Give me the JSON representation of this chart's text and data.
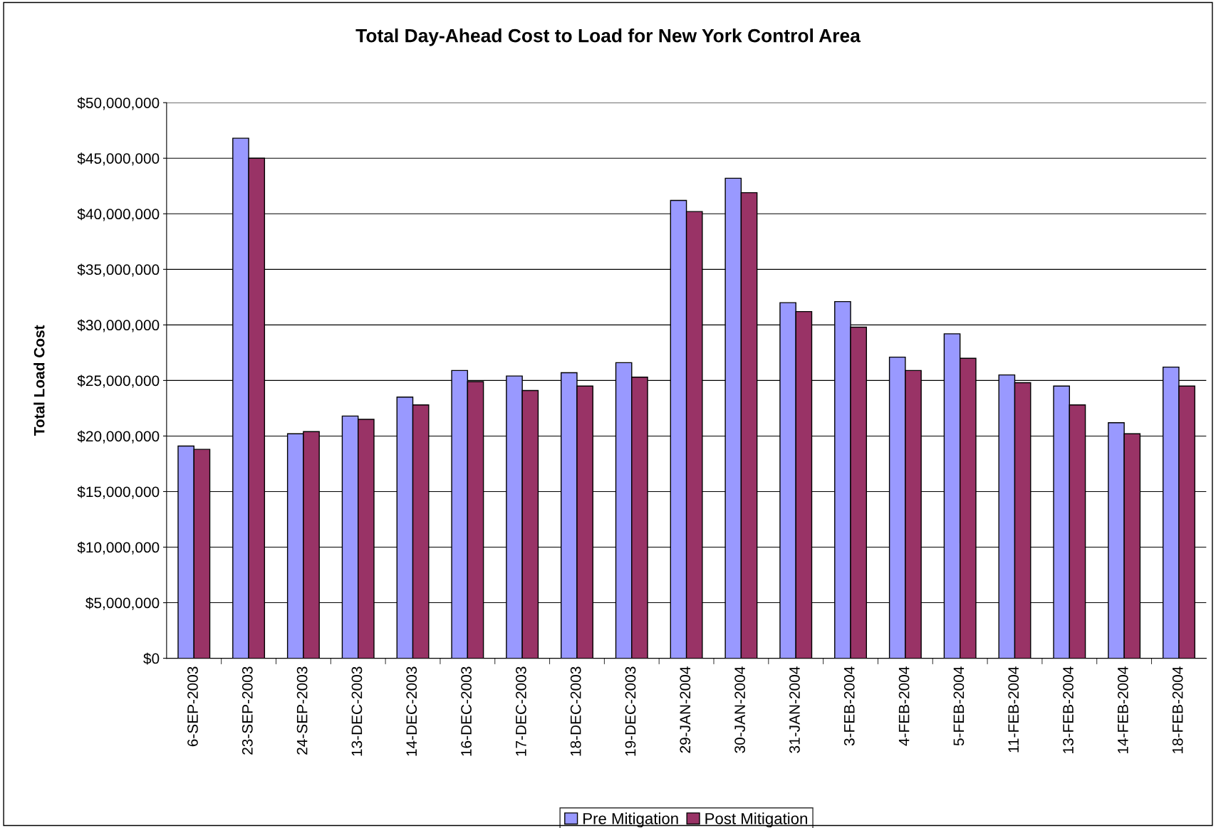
{
  "chart_data": {
    "type": "bar",
    "title": "Total Day-Ahead Cost to Load for New York Control Area",
    "ylabel": "Total Load Cost",
    "categories": [
      "6-SEP-2003",
      "23-SEP-2003",
      "24-SEP-2003",
      "13-DEC-2003",
      "14-DEC-2003",
      "16-DEC-2003",
      "17-DEC-2003",
      "18-DEC-2003",
      "19-DEC-2003",
      "29-JAN-2004",
      "30-JAN-2004",
      "31-JAN-2004",
      "3-FEB-2004",
      "4-FEB-2004",
      "5-FEB-2004",
      "11-FEB-2004",
      "13-FEB-2004",
      "14-FEB-2004",
      "18-FEB-2004"
    ],
    "series": [
      {
        "name": "Pre Mitigation",
        "color": "#9999ff",
        "values": [
          19100000,
          46800000,
          20200000,
          21800000,
          23500000,
          25900000,
          25400000,
          25700000,
          26600000,
          41200000,
          43200000,
          32000000,
          32100000,
          27100000,
          29200000,
          25500000,
          24500000,
          21200000,
          26200000
        ]
      },
      {
        "name": "Post Mitigation",
        "color": "#993366",
        "values": [
          18800000,
          45000000,
          20400000,
          21500000,
          22800000,
          24900000,
          24100000,
          24500000,
          25300000,
          40200000,
          41900000,
          31200000,
          29800000,
          25900000,
          27000000,
          24800000,
          22800000,
          20200000,
          24500000
        ]
      }
    ],
    "ylim": [
      0,
      50000000
    ],
    "yticks": [
      {
        "value": 0,
        "label": "$0"
      },
      {
        "value": 5000000,
        "label": "$5,000,000"
      },
      {
        "value": 10000000,
        "label": "$10,000,000"
      },
      {
        "value": 15000000,
        "label": "$15,000,000"
      },
      {
        "value": 20000000,
        "label": "$20,000,000"
      },
      {
        "value": 25000000,
        "label": "$25,000,000"
      },
      {
        "value": 30000000,
        "label": "$30,000,000"
      },
      {
        "value": 35000000,
        "label": "$35,000,000"
      },
      {
        "value": 40000000,
        "label": "$40,000,000"
      },
      {
        "value": 45000000,
        "label": "$45,000,000"
      },
      {
        "value": 50000000,
        "label": "$50,000,000"
      }
    ],
    "grid": "y",
    "legend": "bottom"
  }
}
